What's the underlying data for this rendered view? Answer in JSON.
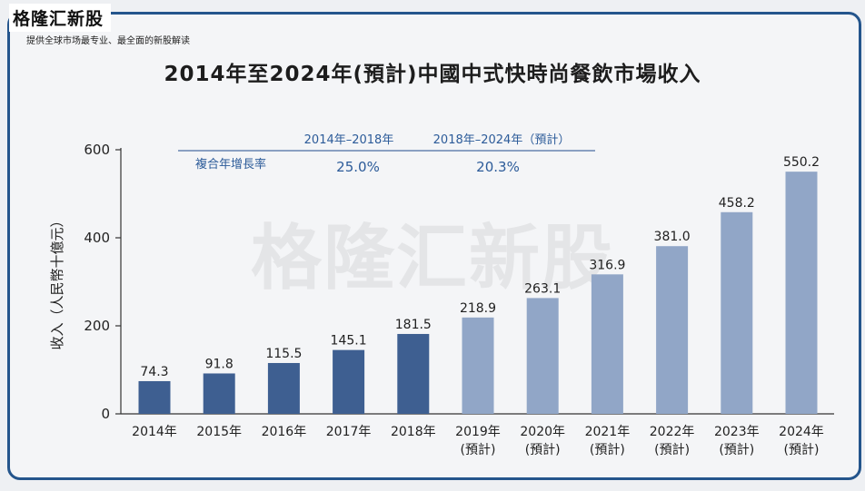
{
  "brand": {
    "name": "格隆汇新股",
    "tagline": "提供全球市场最专业、最全面的新股解读",
    "watermark": "格隆汇新股"
  },
  "chart_data": {
    "type": "bar",
    "title": "2014年至2024年(預計)中國中式快時尚餐飲市場收入",
    "ylabel": "收入（人民幣十億元）",
    "xlabel": "",
    "ylim": [
      0,
      600
    ],
    "yticks": [
      0,
      200,
      400,
      600
    ],
    "grid": false,
    "legend": "none",
    "categories": [
      [
        "2014年"
      ],
      [
        "2015年"
      ],
      [
        "2016年"
      ],
      [
        "2017年"
      ],
      [
        "2018年"
      ],
      [
        "2019年",
        "(預計)"
      ],
      [
        "2020年",
        "(預計)"
      ],
      [
        "2021年",
        "(預計)"
      ],
      [
        "2022年",
        "(預計)"
      ],
      [
        "2023年",
        "(預計)"
      ],
      [
        "2024年",
        "(預計)"
      ]
    ],
    "values": [
      74.3,
      91.8,
      115.5,
      145.1,
      181.5,
      218.9,
      263.1,
      316.9,
      381.0,
      458.2,
      550.2
    ],
    "value_labels": [
      "74.3",
      "91.8",
      "115.5",
      "145.1",
      "181.5",
      "218.9",
      "263.1",
      "316.9",
      "381.0",
      "458.2",
      "550.2"
    ],
    "forecast": [
      false,
      false,
      false,
      false,
      false,
      true,
      true,
      true,
      true,
      true,
      true
    ],
    "colors": {
      "actual": "#3e5f91",
      "forecast": "#91a6c7",
      "axis": "#333333",
      "cagr_text": "#2c5b99"
    },
    "cagr": {
      "label": "複合年增長率",
      "periods": [
        "2014年–2018年",
        "2018年–2024年（預計）"
      ],
      "rates": [
        "25.0%",
        "20.3%"
      ]
    }
  }
}
